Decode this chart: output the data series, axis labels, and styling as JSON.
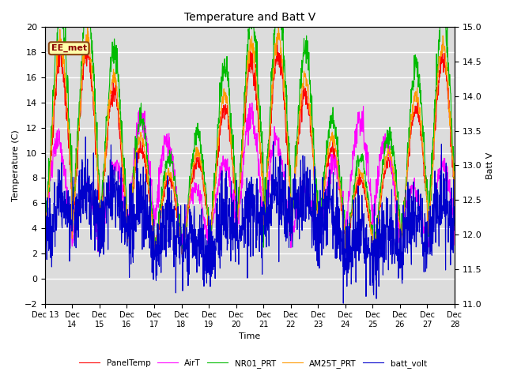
{
  "title": "Temperature and Batt V",
  "xlabel": "Time",
  "ylabel_left": "Temperature (C)",
  "ylabel_right": "Batt V",
  "ylim_left": [
    -2,
    20
  ],
  "ylim_right": [
    11.0,
    15.0
  ],
  "plot_bg_color": "#dcdcdc",
  "fig_bg_color": "#ffffff",
  "annotation": "EE_met",
  "legend": [
    "PanelTemp",
    "AirT",
    "NR01_PRT",
    "AM25T_PRT",
    "batt_volt"
  ],
  "legend_colors": [
    "#ff0000",
    "#ff00ff",
    "#00bb00",
    "#ff9900",
    "#0000cc"
  ],
  "x_tick_labels": [
    "Dec 13",
    "Dec 14",
    "Dec 15",
    "Dec 16",
    "Dec 17",
    "Dec 18",
    "Dec 19",
    "Dec 20",
    "Dec 21",
    "Dec 22",
    "Dec 23",
    "Dec 24",
    "Dec 25",
    "Dec 26",
    "Dec 27",
    "Dec 28"
  ],
  "yticks_left": [
    -2,
    0,
    2,
    4,
    6,
    8,
    10,
    12,
    14,
    16,
    18,
    20
  ],
  "yticks_right": [
    11.0,
    11.5,
    12.0,
    12.5,
    13.0,
    13.5,
    14.0,
    14.5,
    15.0
  ],
  "n_points": 1500
}
